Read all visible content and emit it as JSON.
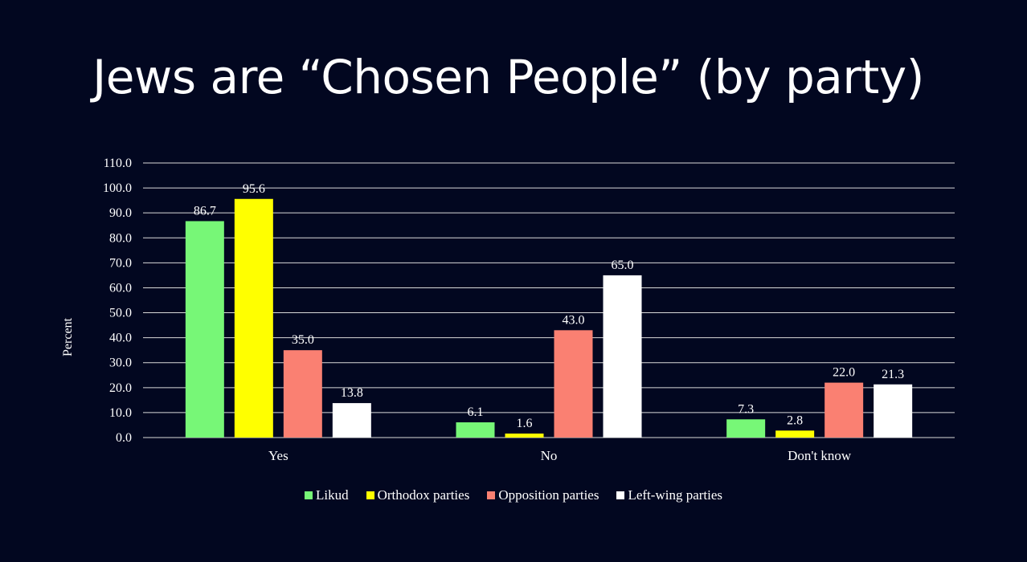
{
  "title": "Jews are “Chosen People” (by party)",
  "chart_data": {
    "type": "bar",
    "title": "Jews are “Chosen People” (by party)",
    "xlabel": "",
    "ylabel": "Percent",
    "ylim": [
      0,
      110
    ],
    "yticks": [
      "0.0",
      "10.0",
      "20.0",
      "30.0",
      "40.0",
      "50.0",
      "60.0",
      "70.0",
      "80.0",
      "90.0",
      "100.0",
      "110.0"
    ],
    "grid": true,
    "legend_position": "bottom",
    "categories": [
      "Yes",
      "No",
      "Don't know"
    ],
    "series": [
      {
        "name": "Likud",
        "color": "#77f777",
        "values": [
          86.7,
          6.1,
          7.3
        ],
        "labels": [
          "86.7",
          "6.1",
          "7.3"
        ]
      },
      {
        "name": "Orthodox parties",
        "color": "#ffff00",
        "values": [
          95.6,
          1.6,
          2.8
        ],
        "labels": [
          "95.6",
          "1.6",
          "2.8"
        ]
      },
      {
        "name": "Opposition parties",
        "color": "#fa8072",
        "values": [
          35.0,
          43.0,
          22.0
        ],
        "labels": [
          "35.0",
          "43.0",
          "22.0"
        ]
      },
      {
        "name": "Left-wing parties",
        "color": "#ffffff",
        "values": [
          13.8,
          65.0,
          21.3
        ],
        "labels": [
          "13.8",
          "65.0",
          "21.3"
        ]
      }
    ]
  }
}
